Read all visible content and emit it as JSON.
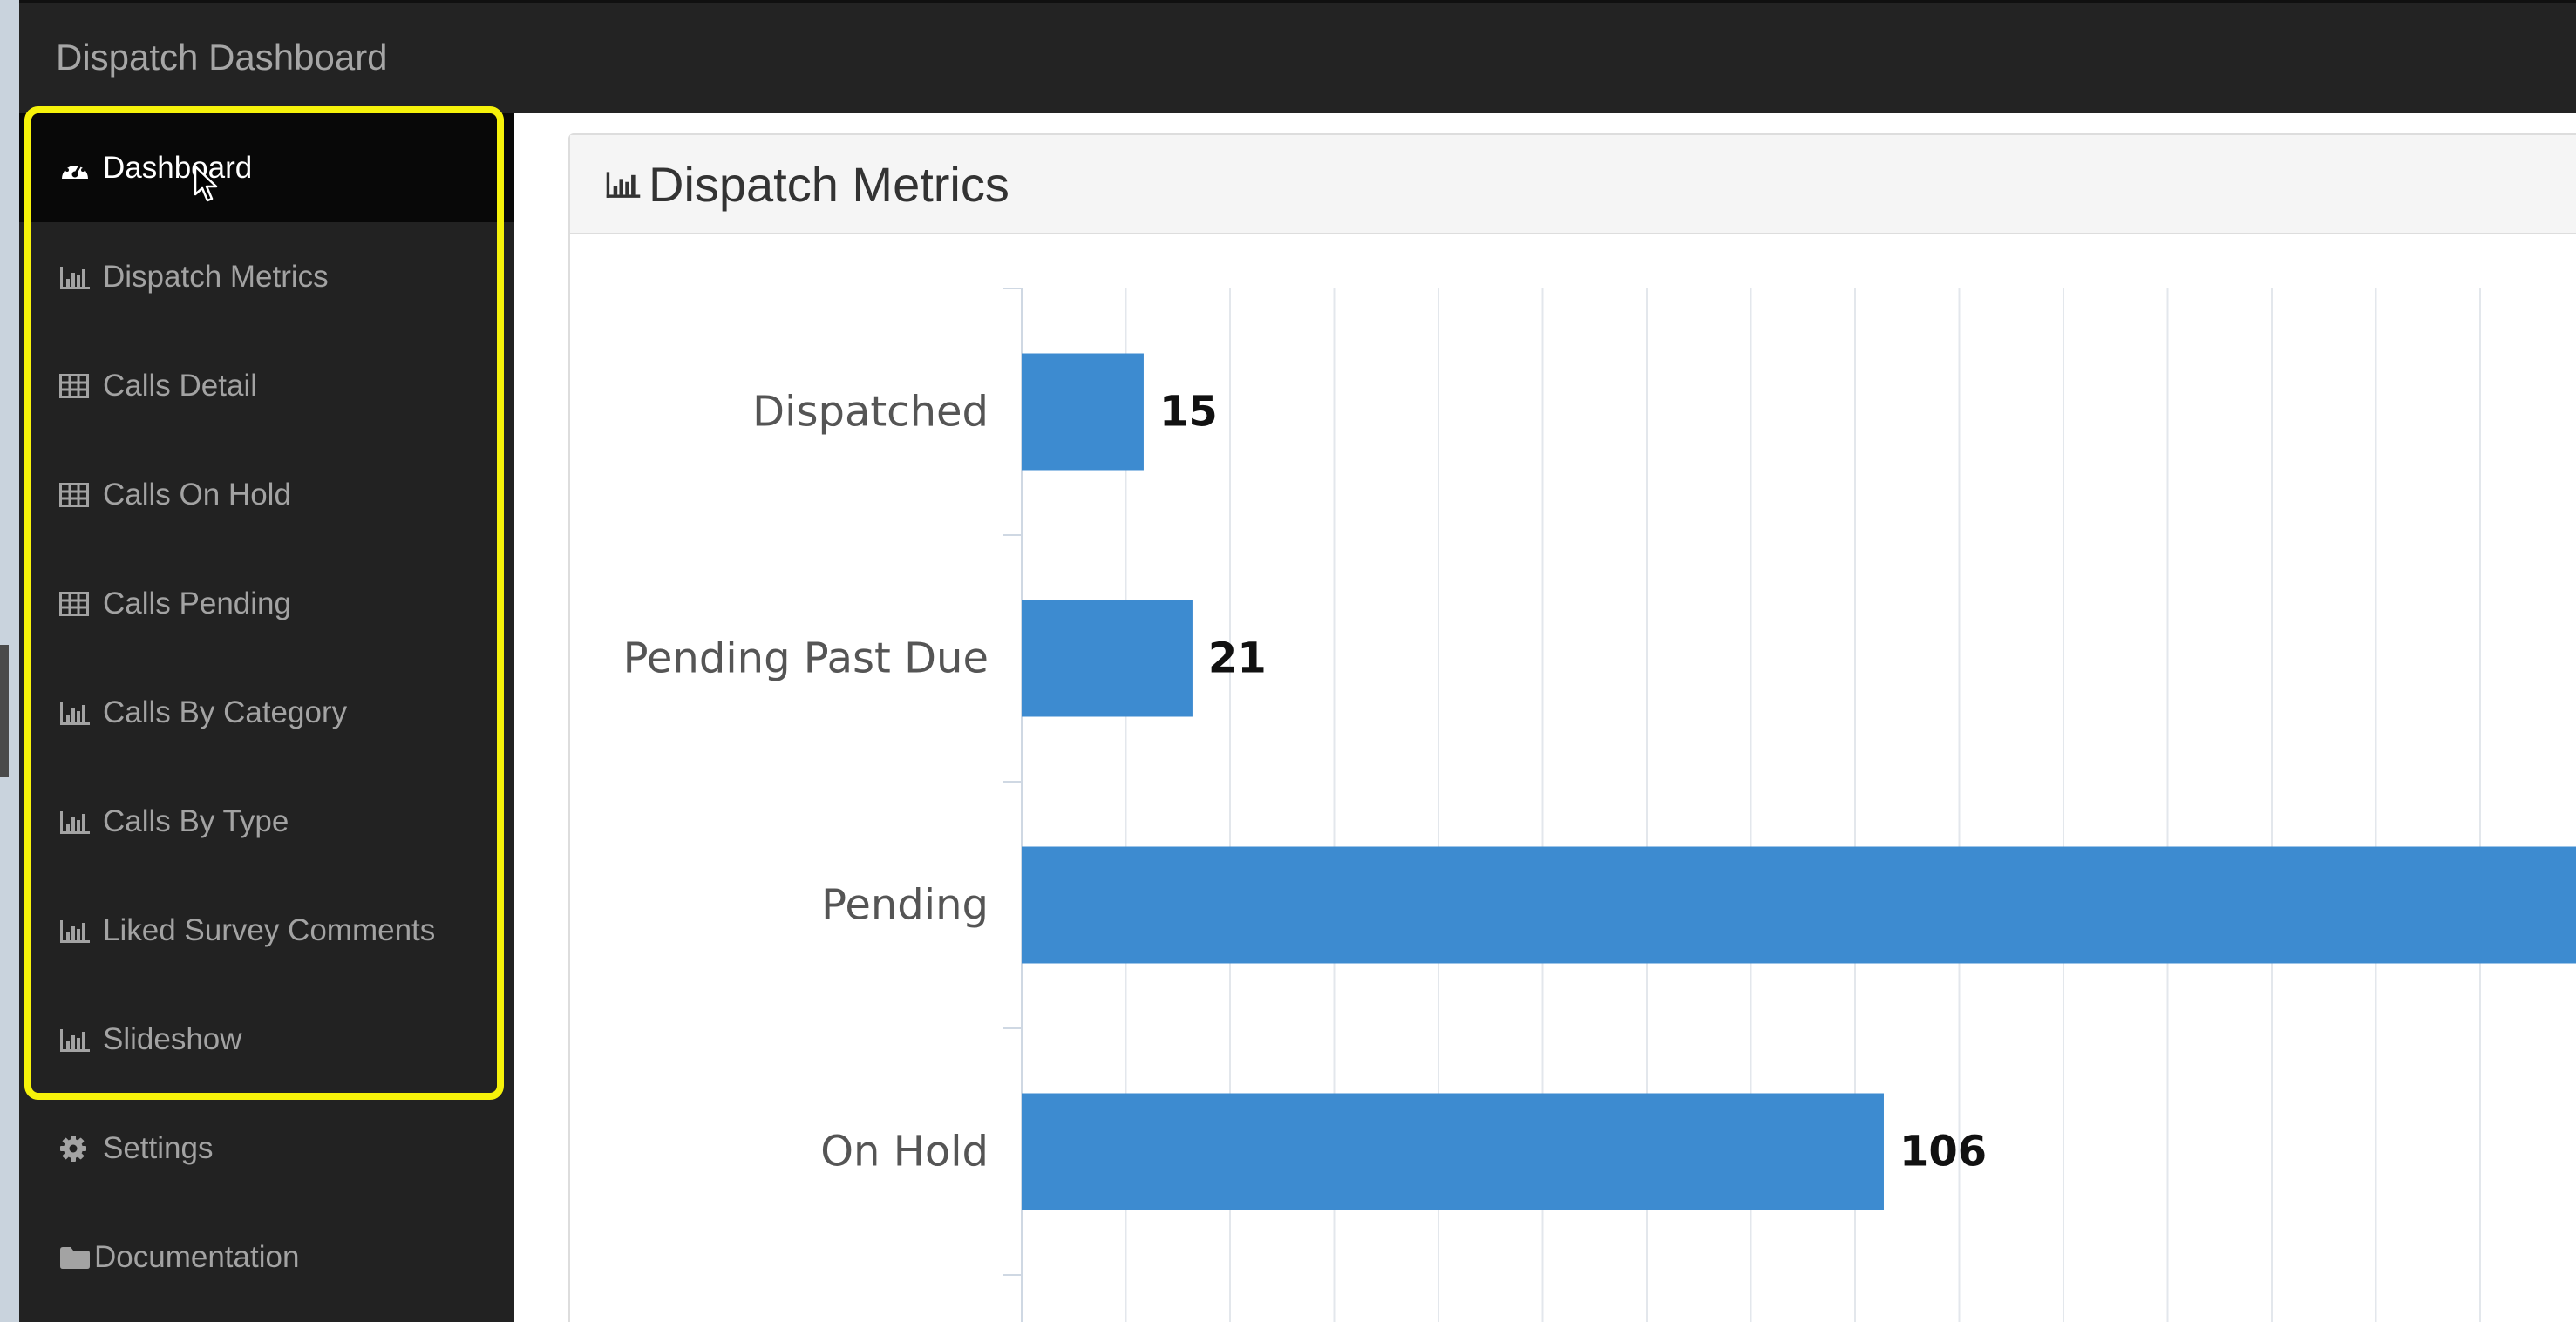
{
  "app": {
    "title": "Dispatch Dashboard"
  },
  "sidebar": {
    "items": [
      {
        "label": "Dashboard",
        "icon": "dashboard-icon",
        "active": true
      },
      {
        "label": "Dispatch Metrics",
        "icon": "bar-chart-icon"
      },
      {
        "label": "Calls Detail",
        "icon": "table-icon"
      },
      {
        "label": "Calls On Hold",
        "icon": "table-icon"
      },
      {
        "label": "Calls Pending",
        "icon": "table-icon"
      },
      {
        "label": "Calls By Category",
        "icon": "bar-chart-icon"
      },
      {
        "label": "Calls By Type",
        "icon": "bar-chart-icon"
      },
      {
        "label": "Liked Survey Comments",
        "icon": "bar-chart-icon"
      },
      {
        "label": "Slideshow",
        "icon": "bar-chart-icon"
      },
      {
        "label": "Settings",
        "icon": "gear-icon"
      },
      {
        "label": "Documentation",
        "icon": "folder-icon"
      }
    ]
  },
  "colors": {
    "accent": "#3d8bd0",
    "highlight": "#f6f20a",
    "sidebar": "#222222"
  },
  "panel": {
    "title": "Dispatch Metrics",
    "icon": "bar-chart-icon"
  },
  "chart_data": {
    "type": "bar",
    "orientation": "horizontal",
    "categories": [
      "Dispatched",
      "Pending Past Due",
      "Pending",
      "On Hold"
    ],
    "values": [
      15,
      21,
      null,
      106
    ],
    "xlim": [
      0,
      225
    ],
    "grid": true,
    "color": "#3d8bd0"
  }
}
